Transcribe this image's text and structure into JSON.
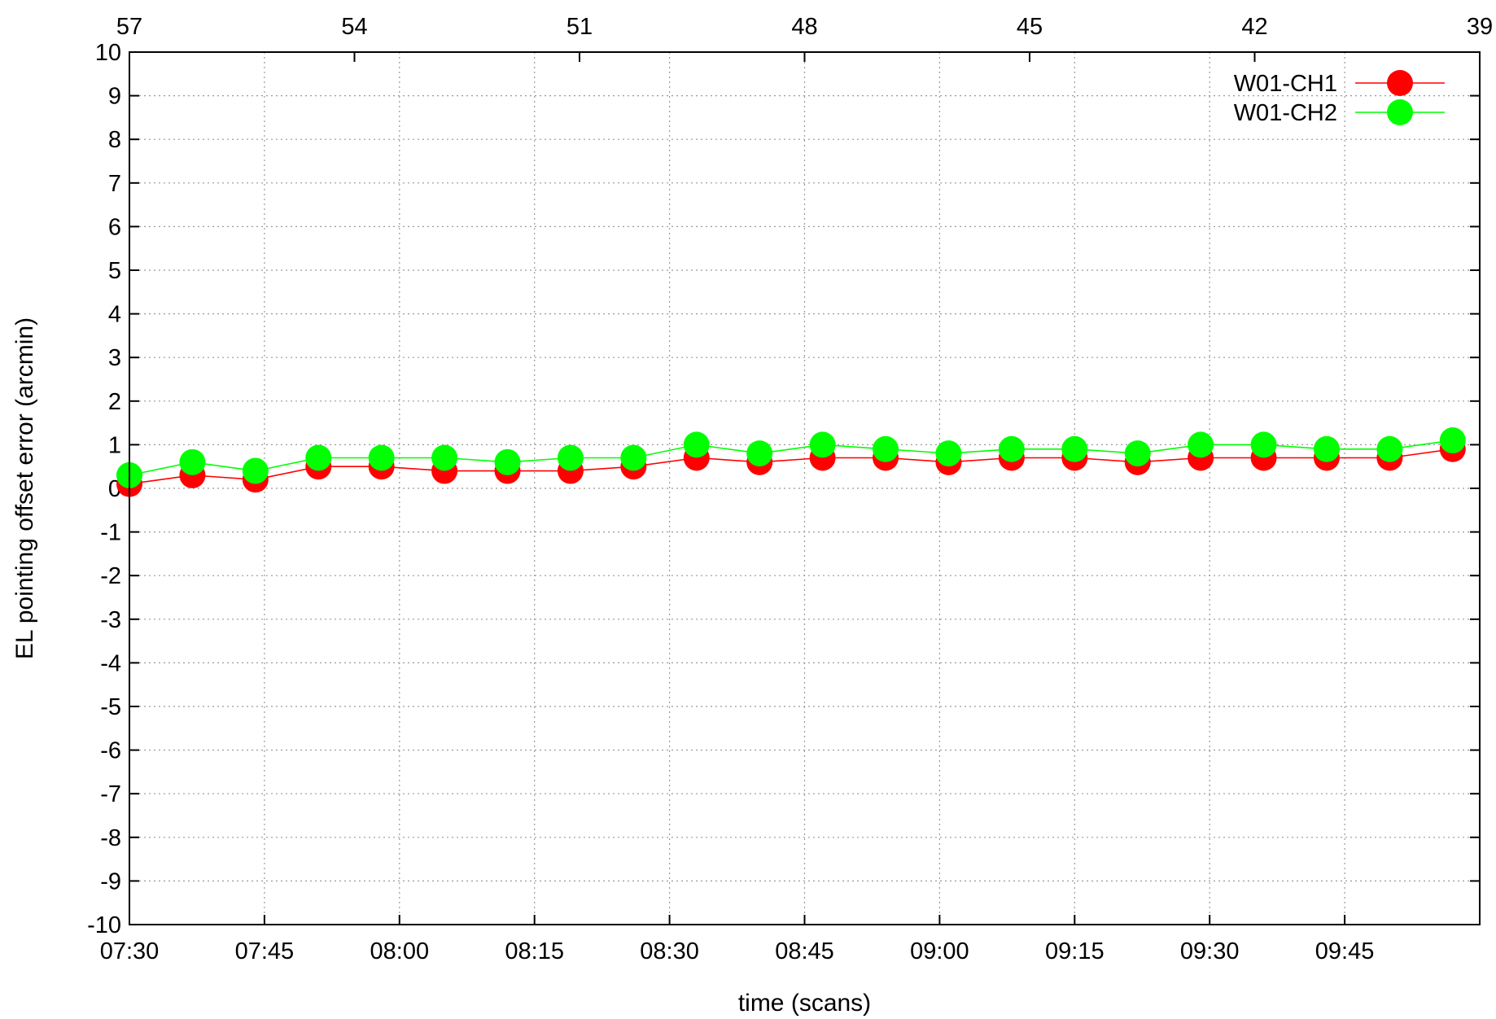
{
  "chart_data": {
    "type": "line",
    "title": "",
    "xlabel": "time (scans)",
    "ylabel": "EL pointing offset error (arcmin)",
    "ylim": [
      -10,
      10
    ],
    "yticks": [
      "10",
      "9",
      "8",
      "7",
      "6",
      "5",
      "4",
      "3",
      "2",
      "1",
      "0",
      "-1",
      "-2",
      "-3",
      "-4",
      "-5",
      "-6",
      "-7",
      "-8",
      "-9",
      "-10"
    ],
    "xlim": [
      "07:30",
      "10:00"
    ],
    "xticks": [
      "07:30",
      "07:45",
      "08:00",
      "08:15",
      "08:30",
      "08:45",
      "09:00",
      "09:15",
      "09:30",
      "09:45"
    ],
    "x2ticks": [
      "57",
      "54",
      "51",
      "48",
      "45",
      "42",
      "39"
    ],
    "grid": true,
    "legend_position": "top-right",
    "x": [
      "07:30",
      "07:37",
      "07:44",
      "07:51",
      "07:58",
      "08:05",
      "08:12",
      "08:19",
      "08:26",
      "08:33",
      "08:40",
      "08:47",
      "08:54",
      "09:01",
      "09:08",
      "09:15",
      "09:22",
      "09:29",
      "09:36",
      "09:43",
      "09:50",
      "09:57"
    ],
    "series": [
      {
        "name": "W01-CH1",
        "color": "#ff0000",
        "values": [
          0.1,
          0.3,
          0.2,
          0.5,
          0.5,
          0.4,
          0.4,
          0.4,
          0.5,
          0.7,
          0.6,
          0.7,
          0.7,
          0.6,
          0.7,
          0.7,
          0.6,
          0.7,
          0.7,
          0.7,
          0.7,
          0.9
        ]
      },
      {
        "name": "W01-CH2",
        "color": "#00ff00",
        "values": [
          0.3,
          0.6,
          0.4,
          0.7,
          0.7,
          0.7,
          0.6,
          0.7,
          0.7,
          1.0,
          0.8,
          1.0,
          0.9,
          0.8,
          0.9,
          0.9,
          0.8,
          1.0,
          1.0,
          0.9,
          0.9,
          1.1
        ]
      }
    ]
  }
}
